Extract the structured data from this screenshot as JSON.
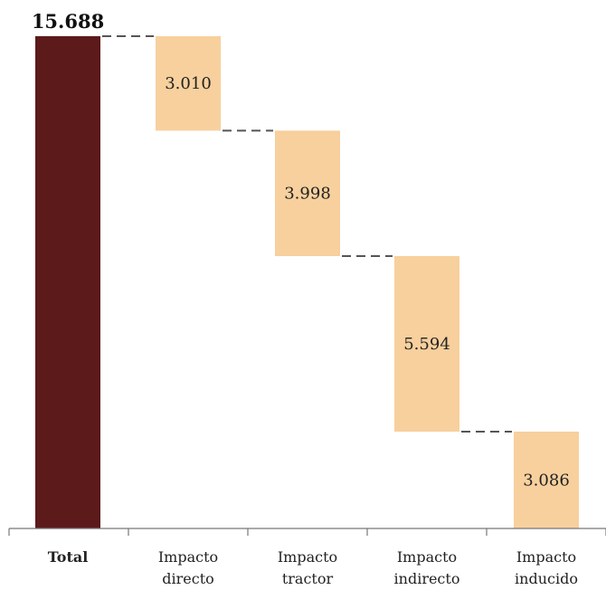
{
  "chart_data": {
    "type": "bar",
    "subtype": "waterfall",
    "total": {
      "label": "Total",
      "value": 15.688,
      "display": "15.688",
      "color": "#5c1a1b"
    },
    "steps": [
      {
        "label_lines": [
          "Impacto",
          "directo"
        ],
        "value": 3.01,
        "display": "3.010"
      },
      {
        "label_lines": [
          "Impacto",
          "tractor"
        ],
        "value": 3.998,
        "display": "3.998"
      },
      {
        "label_lines": [
          "Impacto",
          "indirecto"
        ],
        "value": 5.594,
        "display": "5.594"
      },
      {
        "label_lines": [
          "Impacto",
          "inducido"
        ],
        "value": 3.086,
        "display": "3.086"
      }
    ],
    "step_color": "#f7d09d",
    "connector_color": "#555555",
    "axis_color": "#777777",
    "ylim": [
      0,
      15.688
    ],
    "grid": false,
    "legend": "none"
  }
}
